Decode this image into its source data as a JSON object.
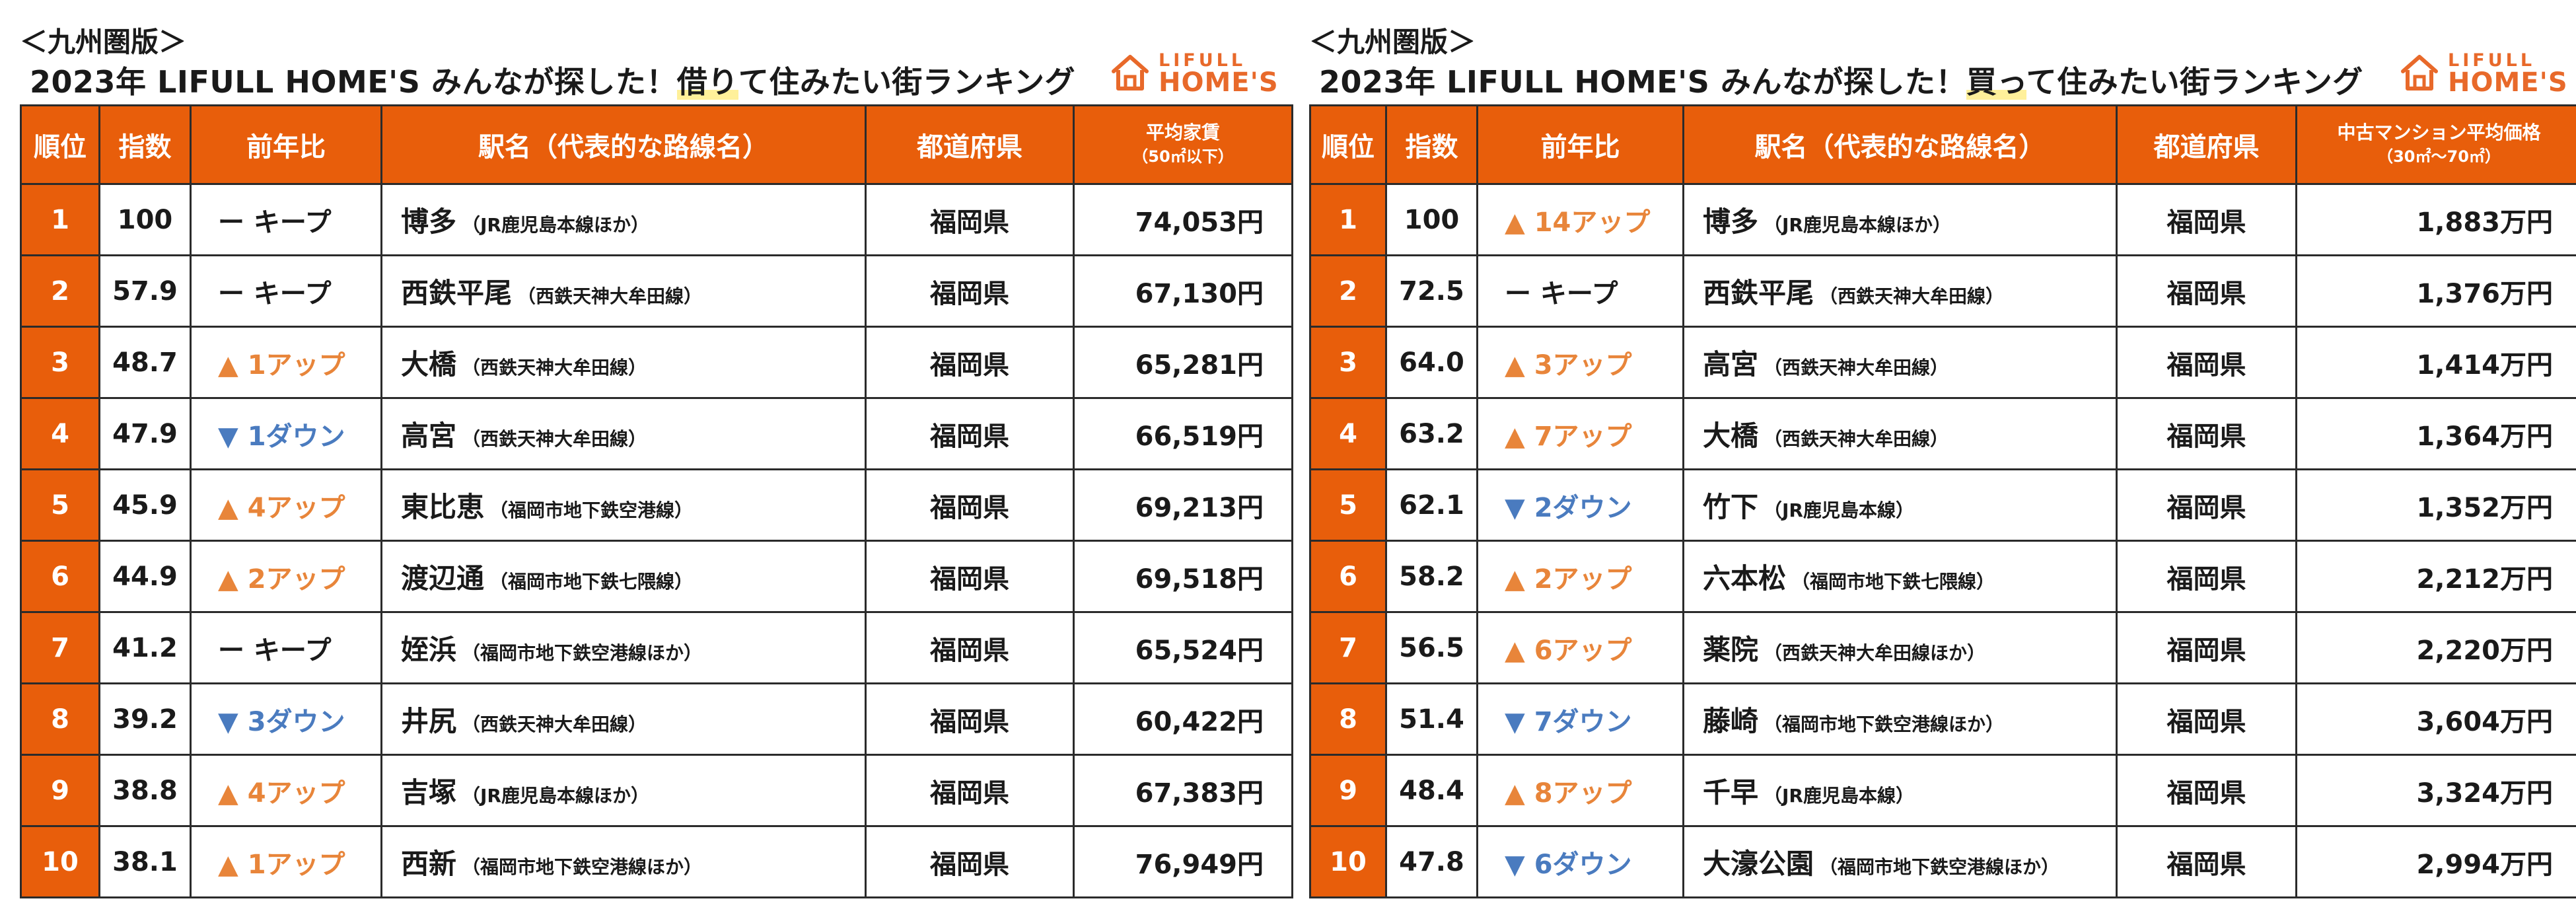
{
  "colors": {
    "accent": "#e85e0b",
    "up": "#e8853a",
    "down": "#4a7bbf",
    "logo": "#e8692a",
    "highlight": "#fff09a"
  },
  "logo": {
    "top": "LIFULL",
    "bottom": "HOME'S",
    "icon": "home-logo-icon"
  },
  "rent": {
    "region": "＜九州圏版＞",
    "title_pre": "2023年 LIFULL HOME'S みんなが探した！",
    "title_hl": "借り",
    "title_post": "て住みたい街ランキング",
    "headers": {
      "rank": "順位",
      "score": "指数",
      "change": "前年比",
      "station": "駅名（代表的な路線名）",
      "pref": "都道府県",
      "price": "平均家賃",
      "price_sub": "（50㎡以下）"
    },
    "rows": [
      {
        "rank": "1",
        "score": "100",
        "change": "ー キープ",
        "name": "博多",
        "line": "（JR鹿児島本線ほか）",
        "pref": "福岡県",
        "price": "74,053円"
      },
      {
        "rank": "2",
        "score": "57.9",
        "change": "ー キープ",
        "name": "西鉄平尾",
        "line": "（西鉄天神大牟田線）",
        "pref": "福岡県",
        "price": "67,130円"
      },
      {
        "rank": "3",
        "score": "48.7",
        "change": "▲ 1アップ",
        "name": "大橋",
        "line": "（西鉄天神大牟田線）",
        "pref": "福岡県",
        "price": "65,281円"
      },
      {
        "rank": "4",
        "score": "47.9",
        "change": "▼ 1ダウン",
        "name": "高宮",
        "line": "（西鉄天神大牟田線）",
        "pref": "福岡県",
        "price": "66,519円"
      },
      {
        "rank": "5",
        "score": "45.9",
        "change": "▲ 4アップ",
        "name": "東比恵",
        "line": "（福岡市地下鉄空港線）",
        "pref": "福岡県",
        "price": "69,213円"
      },
      {
        "rank": "6",
        "score": "44.9",
        "change": "▲ 2アップ",
        "name": "渡辺通",
        "line": "（福岡市地下鉄七隈線）",
        "pref": "福岡県",
        "price": "69,518円"
      },
      {
        "rank": "7",
        "score": "41.2",
        "change": "ー キープ",
        "name": "姪浜",
        "line": "（福岡市地下鉄空港線ほか）",
        "pref": "福岡県",
        "price": "65,524円"
      },
      {
        "rank": "8",
        "score": "39.2",
        "change": "▼ 3ダウン",
        "name": "井尻",
        "line": "（西鉄天神大牟田線）",
        "pref": "福岡県",
        "price": "60,422円"
      },
      {
        "rank": "9",
        "score": "38.8",
        "change": "▲ 4アップ",
        "name": "吉塚",
        "line": "（JR鹿児島本線ほか）",
        "pref": "福岡県",
        "price": "67,383円"
      },
      {
        "rank": "10",
        "score": "38.1",
        "change": "▲ 1アップ",
        "name": "西新",
        "line": "（福岡市地下鉄空港線ほか）",
        "pref": "福岡県",
        "price": "76,949円"
      }
    ]
  },
  "buy": {
    "region": "＜九州圏版＞",
    "title_pre": "2023年 LIFULL HOME'S みんなが探した！",
    "title_hl": "買っ",
    "title_post": "て住みたい街ランキング",
    "headers": {
      "rank": "順位",
      "score": "指数",
      "change": "前年比",
      "station": "駅名（代表的な路線名）",
      "pref": "都道府県",
      "price": "中古マンション平均価格",
      "price_sub": "（30㎡～70㎡）"
    },
    "rows": [
      {
        "rank": "1",
        "score": "100",
        "change": "▲ 14アップ",
        "name": "博多",
        "line": "（JR鹿児島本線ほか）",
        "pref": "福岡県",
        "price": "1,883万円"
      },
      {
        "rank": "2",
        "score": "72.5",
        "change": "ー キープ",
        "name": "西鉄平尾",
        "line": "（西鉄天神大牟田線）",
        "pref": "福岡県",
        "price": "1,376万円"
      },
      {
        "rank": "3",
        "score": "64.0",
        "change": "▲ 3アップ",
        "name": "高宮",
        "line": "（西鉄天神大牟田線）",
        "pref": "福岡県",
        "price": "1,414万円"
      },
      {
        "rank": "4",
        "score": "63.2",
        "change": "▲ 7アップ",
        "name": "大橋",
        "line": "（西鉄天神大牟田線）",
        "pref": "福岡県",
        "price": "1,364万円"
      },
      {
        "rank": "5",
        "score": "62.1",
        "change": "▼ 2ダウン",
        "name": "竹下",
        "line": "（JR鹿児島本線）",
        "pref": "福岡県",
        "price": "1,352万円"
      },
      {
        "rank": "6",
        "score": "58.2",
        "change": "▲ 2アップ",
        "name": "六本松",
        "line": "（福岡市地下鉄七隈線）",
        "pref": "福岡県",
        "price": "2,212万円"
      },
      {
        "rank": "7",
        "score": "56.5",
        "change": "▲ 6アップ",
        "name": "薬院",
        "line": "（西鉄天神大牟田線ほか）",
        "pref": "福岡県",
        "price": "2,220万円"
      },
      {
        "rank": "8",
        "score": "51.4",
        "change": "▼ 7ダウン",
        "name": "藤崎",
        "line": "（福岡市地下鉄空港線ほか）",
        "pref": "福岡県",
        "price": "3,604万円"
      },
      {
        "rank": "9",
        "score": "48.4",
        "change": "▲ 8アップ",
        "name": "千早",
        "line": "（JR鹿児島本線）",
        "pref": "福岡県",
        "price": "3,324万円"
      },
      {
        "rank": "10",
        "score": "47.8",
        "change": "▼ 6ダウン",
        "name": "大濠公園",
        "line": "（福岡市地下鉄空港線ほか）",
        "pref": "福岡県",
        "price": "2,994万円"
      }
    ]
  }
}
